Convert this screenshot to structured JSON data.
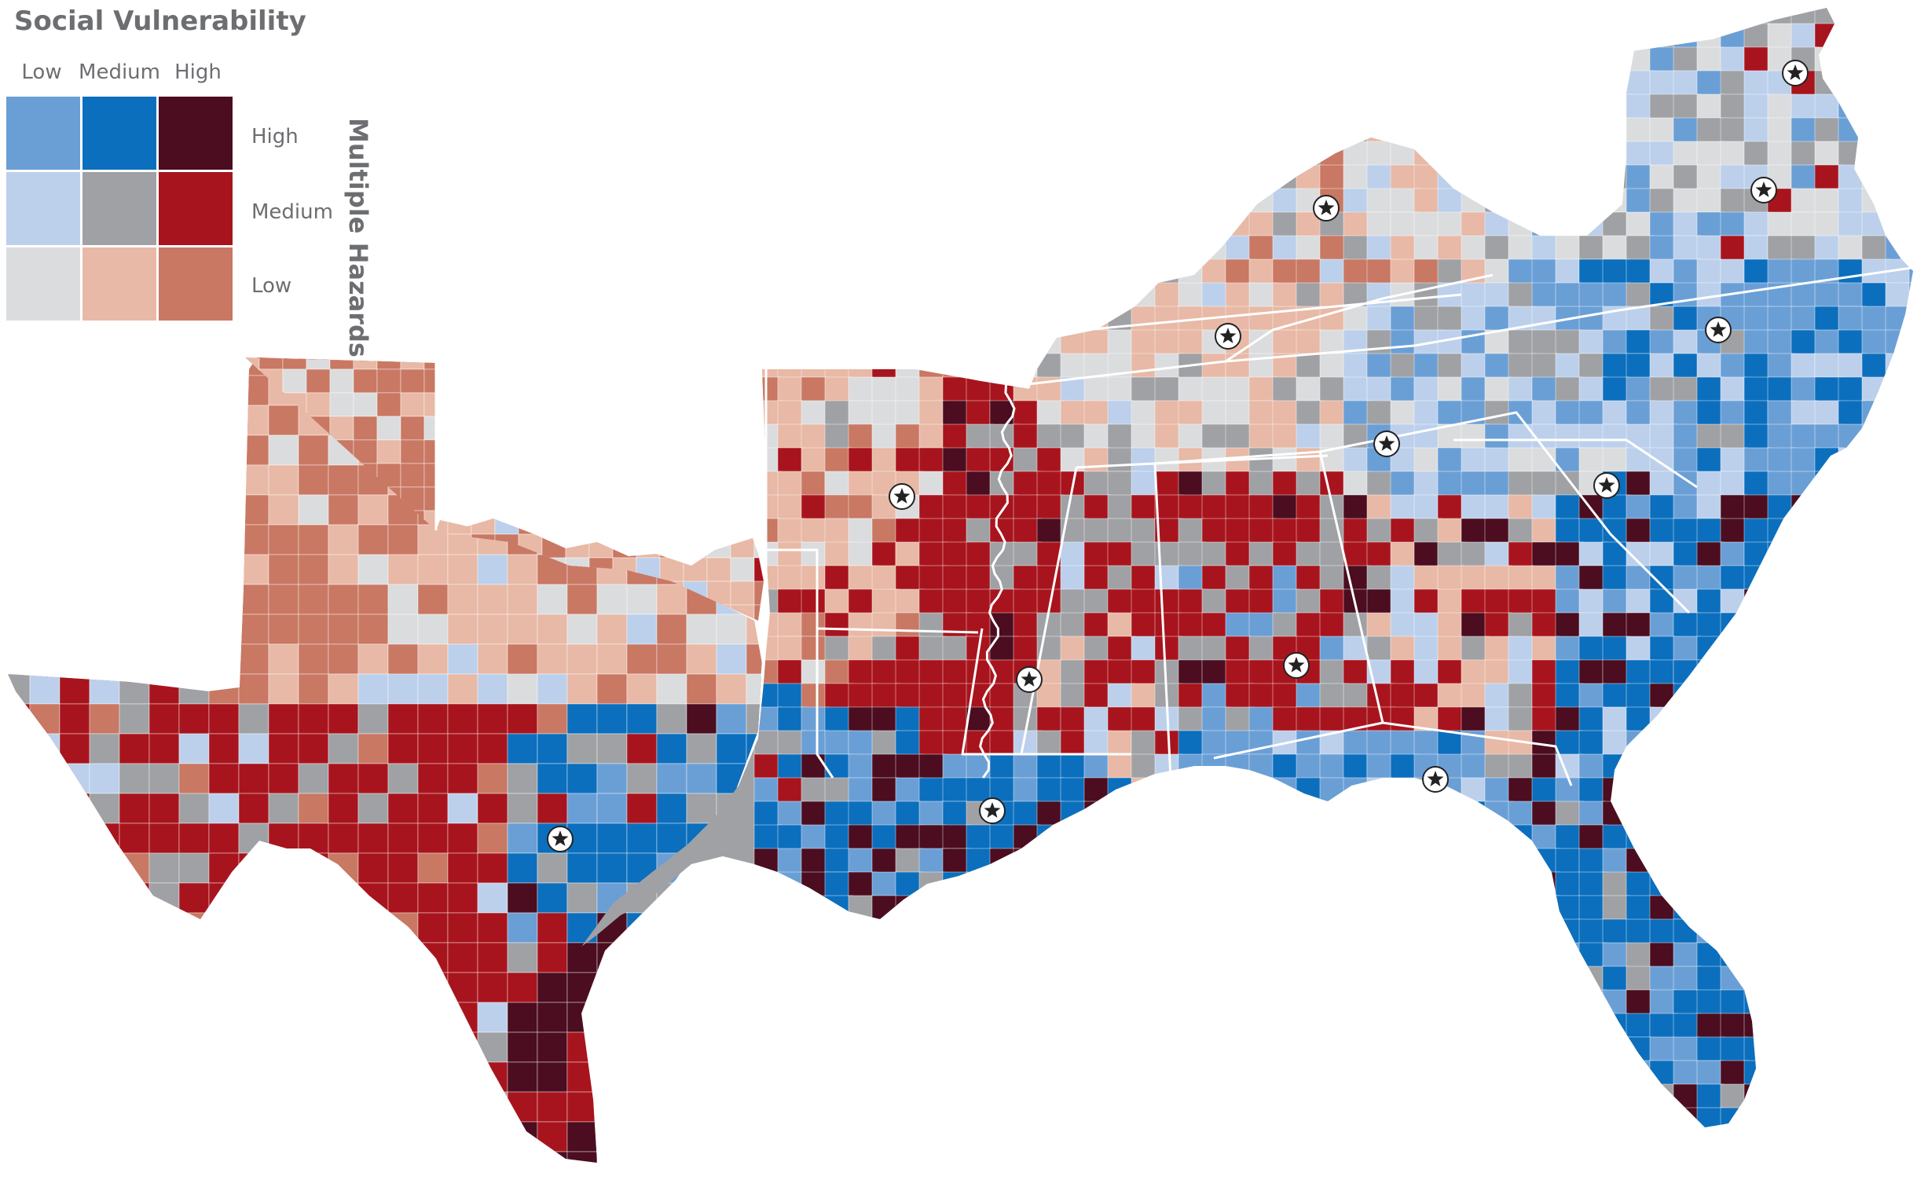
{
  "legend": {
    "title": "Social Vulnerability",
    "x_axis_label": "Social Vulnerability",
    "y_axis_label": "Multiple Hazards",
    "columns": [
      "Low",
      "Medium",
      "High"
    ],
    "rows": [
      "High",
      "Medium",
      "Low"
    ],
    "cells": [
      {
        "vulnerability": "Low",
        "hazards": "High",
        "color": "#6a9fd6"
      },
      {
        "vulnerability": "Medium",
        "hazards": "High",
        "color": "#0b6fbd"
      },
      {
        "vulnerability": "High",
        "hazards": "High",
        "color": "#4b0d1f"
      },
      {
        "vulnerability": "Low",
        "hazards": "Medium",
        "color": "#bcd0ec"
      },
      {
        "vulnerability": "Medium",
        "hazards": "Medium",
        "color": "#a0a1a5"
      },
      {
        "vulnerability": "High",
        "hazards": "Medium",
        "color": "#a8141d"
      },
      {
        "vulnerability": "Low",
        "hazards": "Low",
        "color": "#dbdcde"
      },
      {
        "vulnerability": "Medium",
        "hazards": "Low",
        "color": "#e8b9a6"
      },
      {
        "vulnerability": "High",
        "hazards": "Low",
        "color": "#c97863"
      }
    ]
  },
  "map": {
    "region": "Southeastern United States",
    "features": [
      "county-choropleth",
      "state-borders",
      "mississippi-river",
      "state-capital-markers"
    ],
    "capital_marker_icon": "star-in-circle-icon",
    "capital_count": 13,
    "state_border_color": "#ffffff"
  }
}
